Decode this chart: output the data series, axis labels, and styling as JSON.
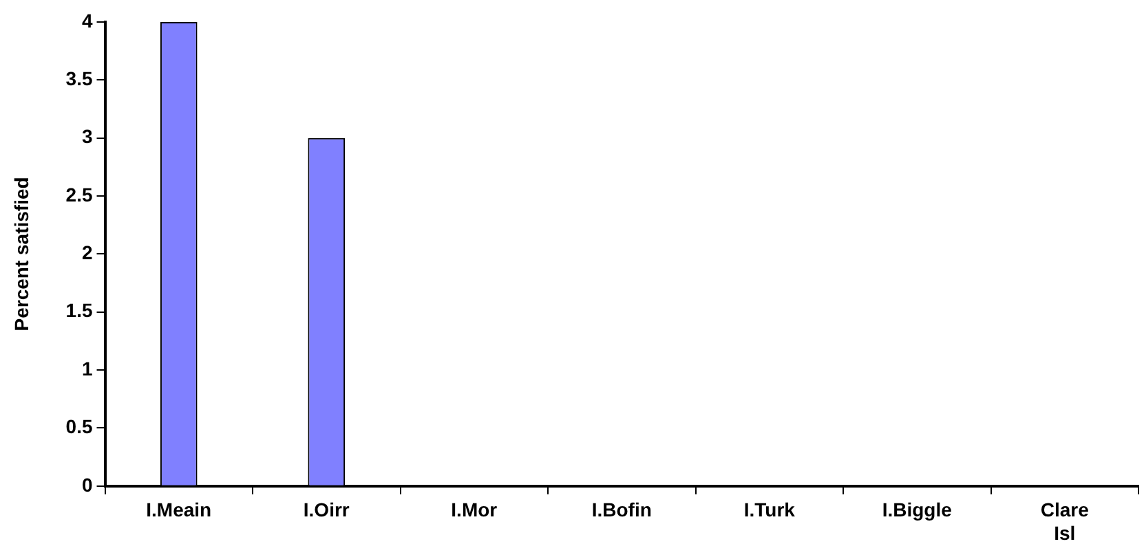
{
  "chart_data": {
    "type": "bar",
    "ylabel": "Percent satisfied",
    "categories": [
      "I.Meain",
      "I.Oirr",
      "I.Mor",
      "I.Bofin",
      "I.Turk",
      "I.Biggle",
      "Clare Isl"
    ],
    "values": [
      4,
      3,
      0,
      0,
      0,
      0,
      0
    ],
    "color": "#8080ff",
    "ylim": [
      0,
      4
    ],
    "yticks": [
      0,
      0.5,
      1,
      1.5,
      2,
      2.5,
      3,
      3.5,
      4
    ],
    "grid": false,
    "legend": false
  }
}
